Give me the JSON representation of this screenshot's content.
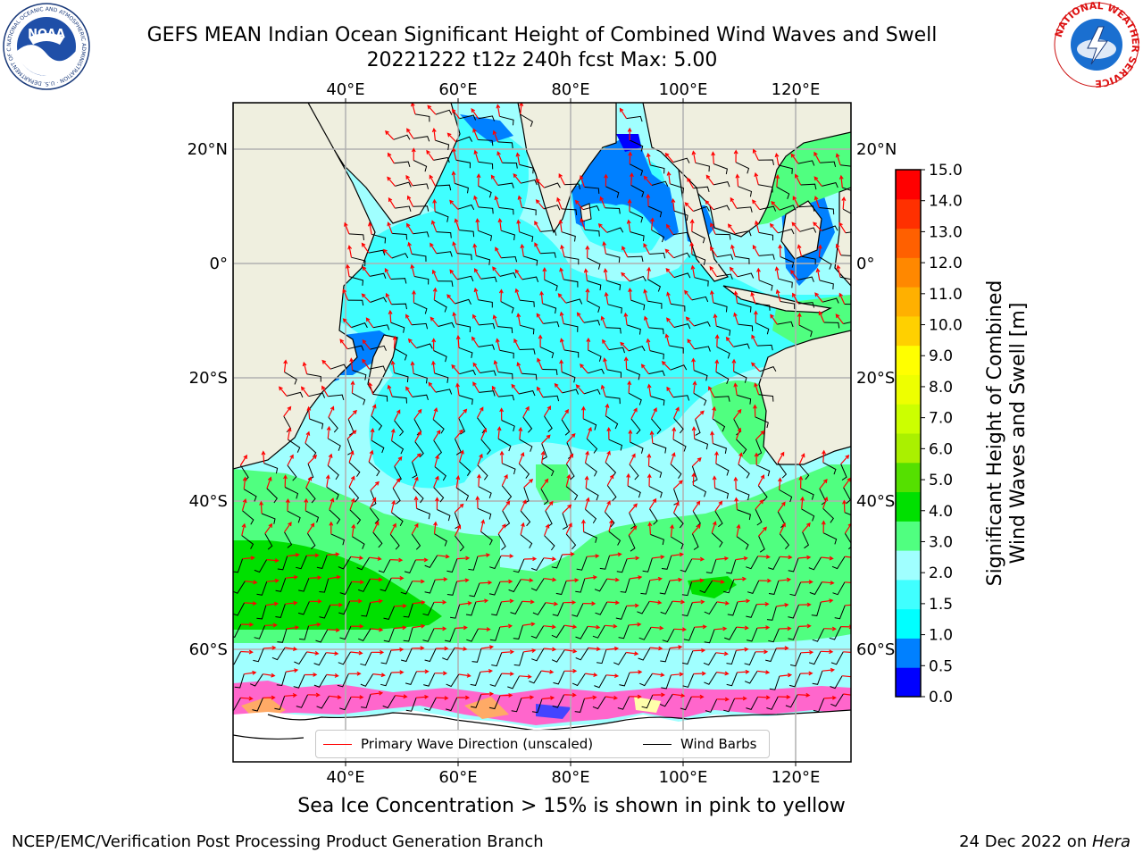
{
  "header": {
    "title_line1": "GEFS MEAN Indian Ocean Significant Height of Combined Wind Waves and Swell",
    "title_line2": "20221222 t12z 240h fcst   Max: 5.00"
  },
  "logos": {
    "noaa_text": "NOAA",
    "noaa_ring_text": "NATIONAL OCEANIC AND ATMOSPHERIC ADMINISTRATION · U.S. DEPARTMENT OF COMMERCE",
    "nws_ring_text": "NATIONAL WEATHER SERVICE"
  },
  "map": {
    "lon_labels": [
      "40°E",
      "60°E",
      "80°E",
      "100°E",
      "120°E"
    ],
    "lat_labels": [
      "20°N",
      "0°",
      "20°S",
      "40°S",
      "60°S"
    ],
    "legend": {
      "wave_label": "Primary Wave Direction (unscaled)",
      "wind_label": "Wind Barbs",
      "wave_color": "#ff0000",
      "wind_color": "#000000"
    }
  },
  "colorbar": {
    "label": "Significant Height of Combined Wind Waves and Swell [m]",
    "label_line1": "Significant Height of Combined",
    "label_line2": "Wind Waves and Swell [m]",
    "ticks": [
      "0.0",
      "0.5",
      "1.0",
      "1.5",
      "2.0",
      "3.0",
      "4.0",
      "5.0",
      "6.0",
      "7.0",
      "8.0",
      "9.0",
      "10.0",
      "11.0",
      "12.0",
      "13.0",
      "14.0",
      "15.0"
    ],
    "colors": [
      "#0000ff",
      "#0080ff",
      "#00ffff",
      "#40ffff",
      "#a0ffff",
      "#50ff80",
      "#00e000",
      "#55e000",
      "#aaf000",
      "#ccff00",
      "#eeff00",
      "#ffff00",
      "#ffd000",
      "#ffb000",
      "#ff8800",
      "#ff6000",
      "#ff3000",
      "#ff0000"
    ]
  },
  "caption": "Sea Ice Concentration > 15% is shown in pink to yellow",
  "footer": {
    "left": "NCEP/EMC/Verification Post Processing Product Generation Branch",
    "right_prefix": "24 Dec 2022 on ",
    "right_machine": "Hera"
  }
}
